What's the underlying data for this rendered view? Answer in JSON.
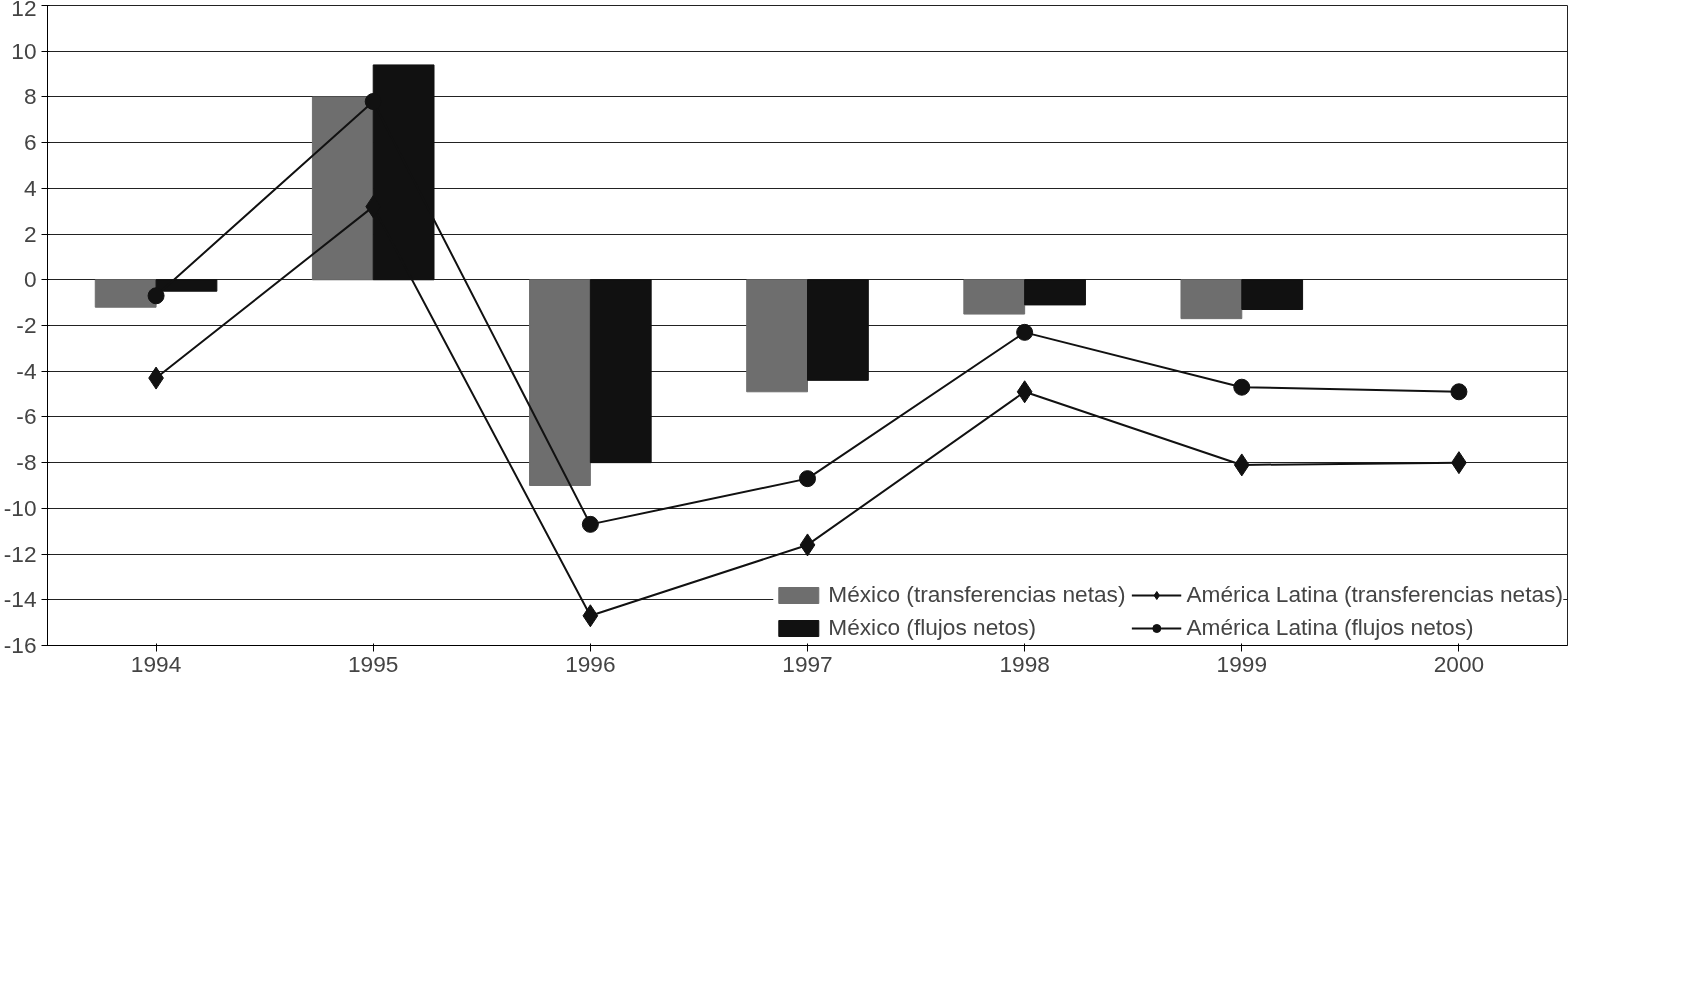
{
  "chart_data": {
    "type": "bar",
    "categories": [
      "1994",
      "1995",
      "1996",
      "1997",
      "1998",
      "1999",
      "2000"
    ],
    "series": [
      {
        "name": "México (transferencias netas)",
        "color": "#6e6e6e",
        "values": [
          -1.2,
          8.0,
          -9.0,
          -4.9,
          -1.5,
          -1.7,
          null
        ]
      },
      {
        "name": "México (flujos netos)",
        "color": "#111111",
        "values": [
          -0.5,
          9.4,
          -8.0,
          -4.4,
          -1.1,
          -1.3,
          null
        ]
      },
      {
        "name": "América Latina (transferencias netas)",
        "type": "line",
        "marker": "diamond",
        "color": "#111111",
        "values": [
          -4.3,
          3.2,
          -14.7,
          -11.6,
          -4.9,
          -8.1,
          -8.0
        ]
      },
      {
        "name": "América Latina (flujos netos)",
        "type": "line",
        "marker": "circle",
        "color": "#111111",
        "values": [
          -0.7,
          7.8,
          -10.7,
          -8.7,
          -2.3,
          -4.7,
          -4.9
        ]
      }
    ],
    "ylim": [
      -16,
      12
    ],
    "yticks": [
      -16,
      -14,
      -12,
      -10,
      -8,
      -6,
      -4,
      -2,
      0,
      2,
      4,
      6,
      8,
      10,
      12
    ],
    "grid": "y",
    "legend": "bottom"
  }
}
